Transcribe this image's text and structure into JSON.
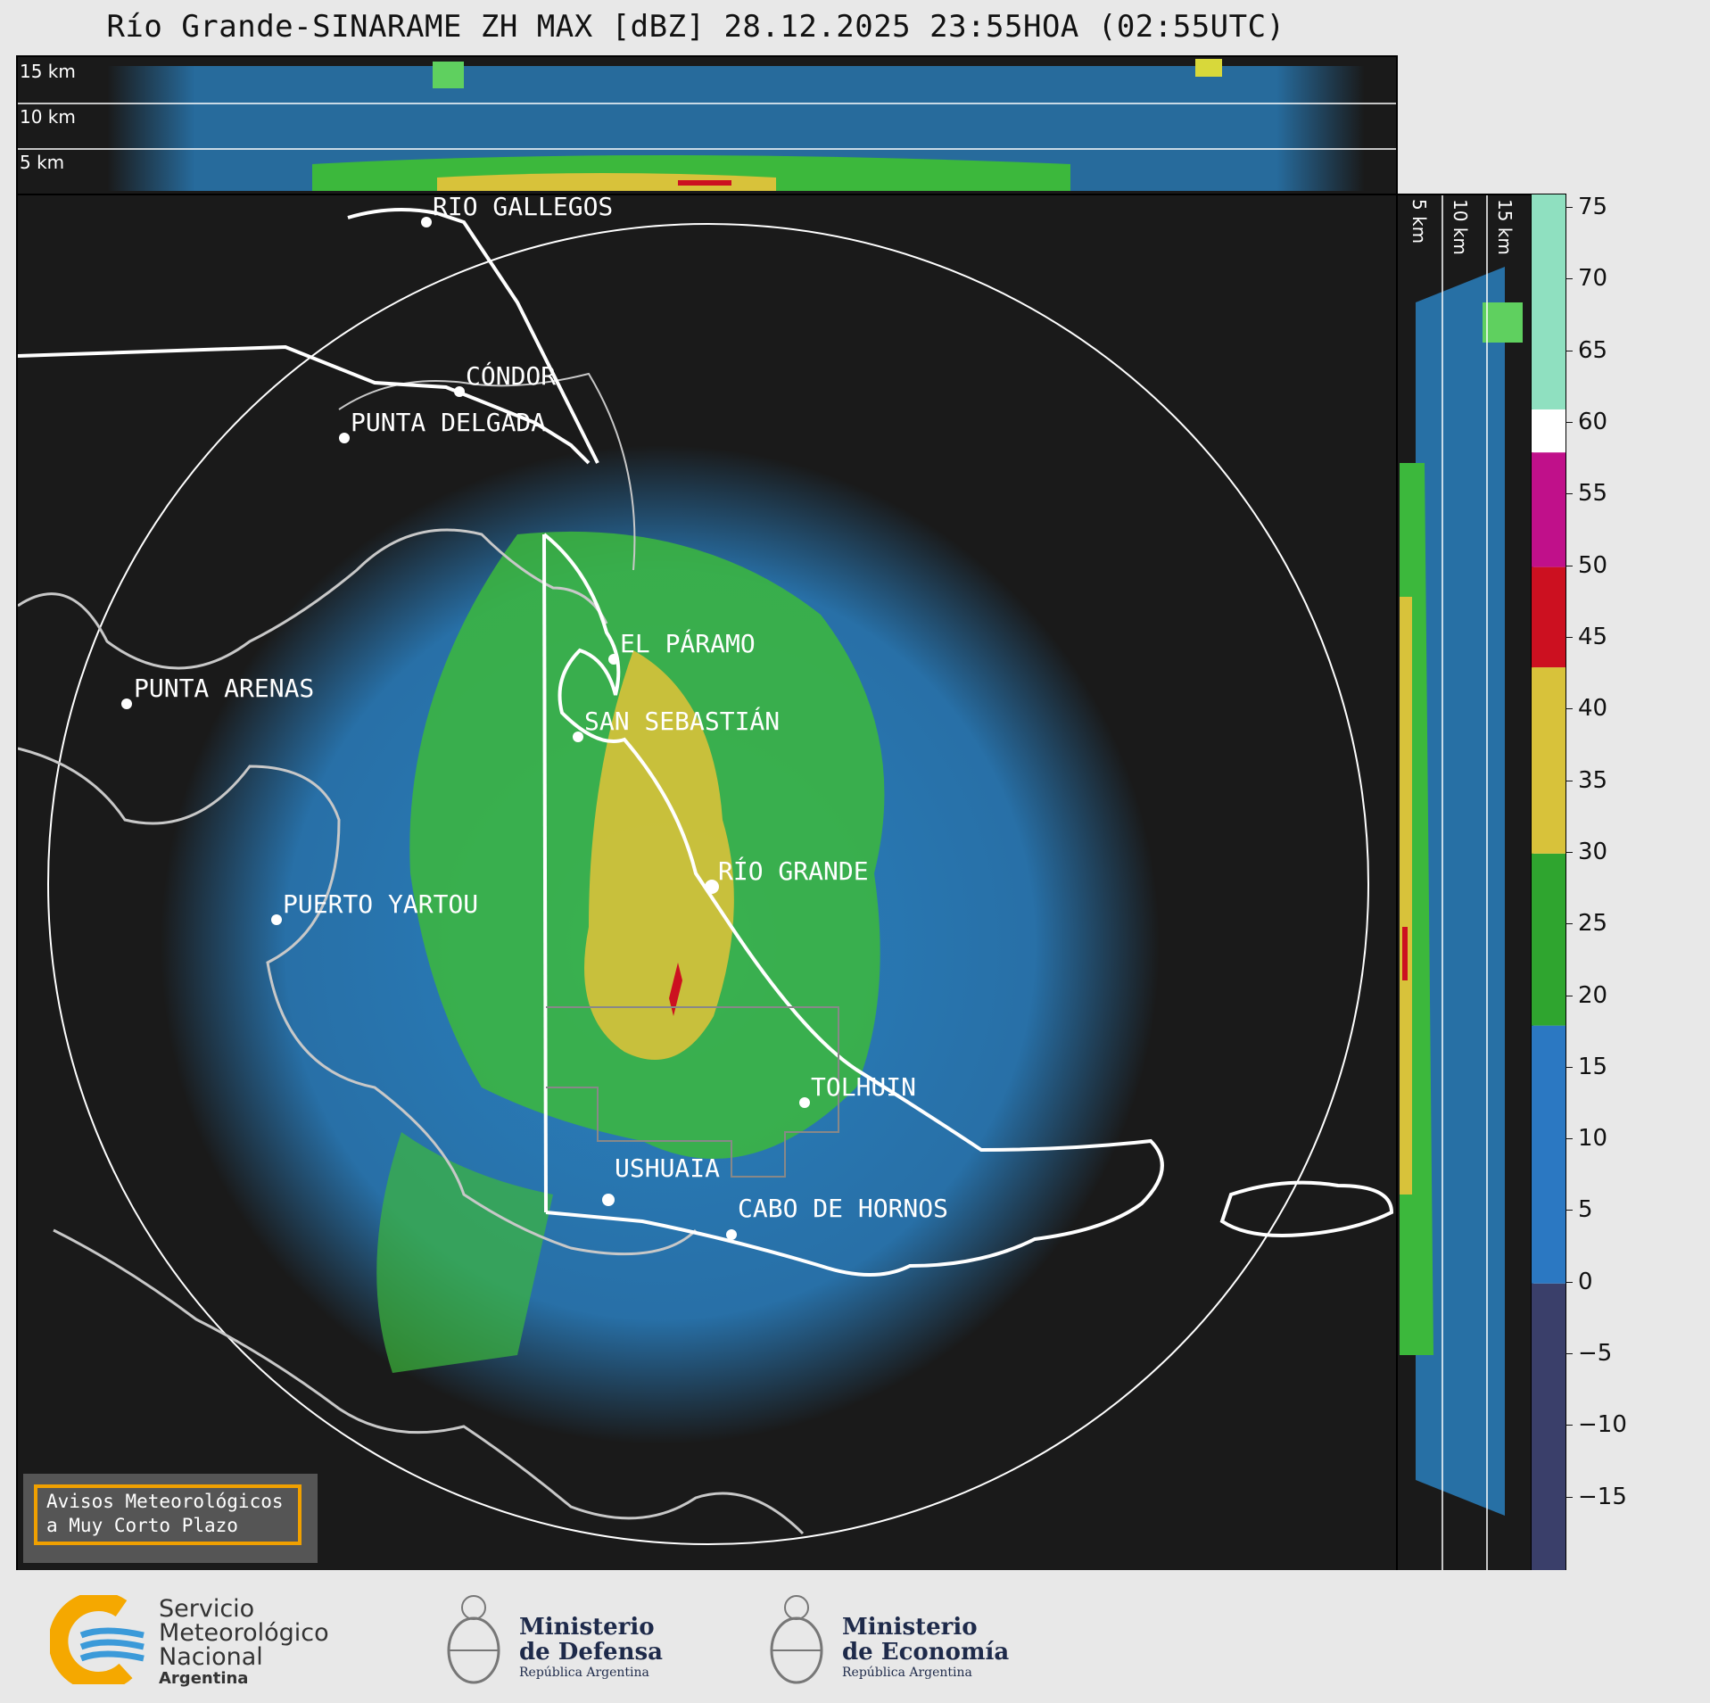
{
  "title": "Río Grande-SINARAME ZH MAX [dBZ] 28.12.2025 23:55HOA (02:55UTC)",
  "top_panel": {
    "alt_labels": [
      "15 km",
      "10 km",
      "5 km"
    ]
  },
  "side_panel": {
    "alt_labels": [
      "5 km",
      "10 km",
      "15 km"
    ]
  },
  "cities": [
    {
      "name": "RÍO GALLEGOS"
    },
    {
      "name": "CÓNDOR"
    },
    {
      "name": "PUNTA DELGADA"
    },
    {
      "name": "PUNTA ARENAS"
    },
    {
      "name": "EL PÁRAMO"
    },
    {
      "name": "SAN SEBASTIÁN"
    },
    {
      "name": "RÍO GRANDE"
    },
    {
      "name": "PUERTO YARTOU"
    },
    {
      "name": "TOLHUIN"
    },
    {
      "name": "USHUAIA"
    },
    {
      "name": "CABO DE HORNOS"
    }
  ],
  "colorbar": {
    "unit": "dBZ",
    "min": -20,
    "max": 76,
    "ticks": [
      "75",
      "70",
      "65",
      "60",
      "55",
      "50",
      "45",
      "40",
      "35",
      "30",
      "25",
      "20",
      "15",
      "10",
      "5",
      "0",
      "−5",
      "−10",
      "−15"
    ],
    "bands": [
      {
        "from": -20,
        "to": 0,
        "color": "#3a3f6a"
      },
      {
        "from": 0,
        "to": 18,
        "color": "#2b78c2"
      },
      {
        "from": 18,
        "to": 30,
        "color": "#2fa52f"
      },
      {
        "from": 30,
        "to": 43,
        "color": "#d8c23a"
      },
      {
        "from": 43,
        "to": 50,
        "color": "#cc1020"
      },
      {
        "from": 50,
        "to": 58,
        "color": "#c0108a"
      },
      {
        "from": 58,
        "to": 61,
        "color": "#ffffff"
      },
      {
        "from": 61,
        "to": 76,
        "color": "#8fe0c0"
      }
    ]
  },
  "warning_box": {
    "line1": "Avisos Meteorológicos",
    "line2": "a Muy Corto Plazo"
  },
  "footer": {
    "smn": [
      "Servicio",
      "Meteorológico",
      "Nacional",
      "Argentina"
    ],
    "defensa": [
      "Ministerio",
      "de Defensa",
      "República Argentina"
    ],
    "economia": [
      "Ministerio",
      "de Economía",
      "República Argentina"
    ]
  },
  "colors": {
    "background": "#1a1a1a",
    "echo_blue": "#2b86c8",
    "echo_green": "#3cb83c",
    "echo_yellow": "#d8c23a",
    "echo_red": "#cc1020"
  }
}
